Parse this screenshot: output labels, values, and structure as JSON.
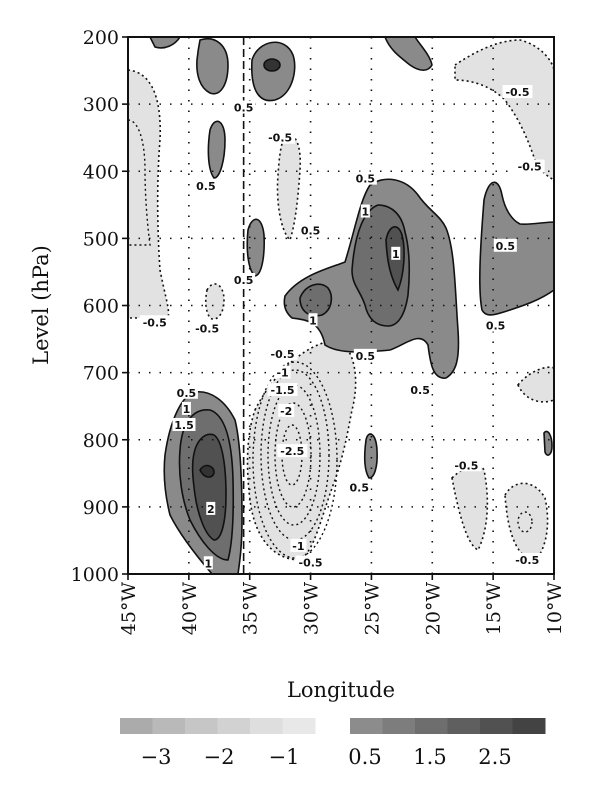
{
  "chart_data": {
    "type": "heatmap",
    "xlabel": "Longitude",
    "ylabel": "Level (hPa)",
    "xticks": [
      "45°W",
      "40°W",
      "35°W",
      "30°W",
      "25°W",
      "20°W",
      "15°W",
      "10°W"
    ],
    "xlim": [
      -45,
      -10
    ],
    "ylim": [
      1000,
      200
    ],
    "yticks": [
      200,
      300,
      400,
      500,
      600,
      700,
      800,
      900,
      1000
    ],
    "reference_line_longitude": -35.5,
    "colorbar": {
      "negative_ticks": [
        "−3",
        "−2",
        "−1"
      ],
      "positive_ticks": [
        "0.5",
        "1.5",
        "2.5"
      ],
      "negative_colors": [
        "#ababab",
        "#b9b9b9",
        "#c6c6c6",
        "#d2d2d2",
        "#dedede",
        "#e8e8e8"
      ],
      "positive_colors": [
        "#8c8c8c",
        "#7d7d7d",
        "#6e6e6e",
        "#5f5f5f",
        "#515151",
        "#434343"
      ]
    },
    "contour_labels": [
      {
        "text": "0.5",
        "lon": -35.5,
        "p": 305
      },
      {
        "text": "-0.5",
        "lon": -32.5,
        "p": 350
      },
      {
        "text": "-0.5",
        "lon": -13.0,
        "p": 282
      },
      {
        "text": "-0.5",
        "lon": -12.0,
        "p": 393
      },
      {
        "text": "0.5",
        "lon": -38.6,
        "p": 422
      },
      {
        "text": "0.5",
        "lon": -25.5,
        "p": 411
      },
      {
        "text": "1",
        "lon": -25.5,
        "p": 460
      },
      {
        "text": "0.5",
        "lon": -30.0,
        "p": 488
      },
      {
        "text": "0.5",
        "lon": -14.0,
        "p": 511
      },
      {
        "text": "1",
        "lon": -23.0,
        "p": 523
      },
      {
        "text": "0.5",
        "lon": -35.5,
        "p": 562
      },
      {
        "text": "0.5",
        "lon": -14.8,
        "p": 630
      },
      {
        "text": "-0.5",
        "lon": -42.8,
        "p": 625
      },
      {
        "text": "-0.5",
        "lon": -38.5,
        "p": 634
      },
      {
        "text": "1",
        "lon": -29.8,
        "p": 622
      },
      {
        "text": "-0.5",
        "lon": -32.3,
        "p": 672
      },
      {
        "text": "0.5",
        "lon": -25.5,
        "p": 675
      },
      {
        "text": "0.5",
        "lon": -21.0,
        "p": 726
      },
      {
        "text": "-1",
        "lon": -32.3,
        "p": 700
      },
      {
        "text": "-1.5",
        "lon": -32.3,
        "p": 726
      },
      {
        "text": "0.5",
        "lon": -40.2,
        "p": 730
      },
      {
        "text": "1",
        "lon": -40.2,
        "p": 754
      },
      {
        "text": "1.5",
        "lon": -40.4,
        "p": 778
      },
      {
        "text": "-2",
        "lon": -32.0,
        "p": 757
      },
      {
        "text": "-2.5",
        "lon": -31.5,
        "p": 817
      },
      {
        "text": "-0.5",
        "lon": -17.2,
        "p": 838
      },
      {
        "text": "0.5",
        "lon": -26.0,
        "p": 871
      },
      {
        "text": "2",
        "lon": -38.2,
        "p": 903
      },
      {
        "text": "-1",
        "lon": -31.0,
        "p": 958
      },
      {
        "text": "-0.5",
        "lon": -30.0,
        "p": 983
      },
      {
        "text": "-0.5",
        "lon": -12.2,
        "p": 979
      },
      {
        "text": "1",
        "lon": -38.4,
        "p": 984
      }
    ]
  }
}
